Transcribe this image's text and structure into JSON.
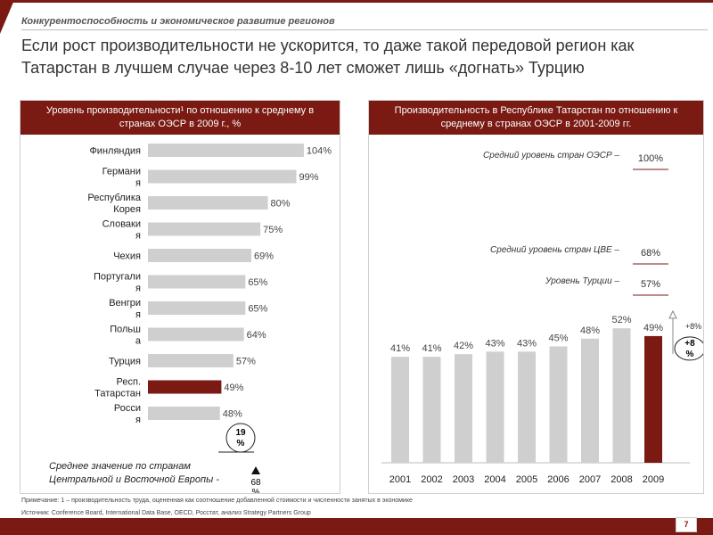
{
  "section_title": "Конкурентоспособность и экономическое развитие регионов",
  "headline": "Если рост производительности не ускорится, то даже такой передовой регион как Татарстан в лучшем случае через 8-10 лет сможет лишь «догнать» Турцию",
  "left_panel_header": "Уровень производительности¹ по отношению к среднему в странах ОЭСР в 2009 г., %",
  "right_panel_header": "Производительность в Республике Татарстан по отношению к среднему в странах ОЭСР в 2001-2009 гг.",
  "footnote": "Примечание: 1 – производительность труда, оцененная как соотношение добавленной стоимости и численности занятых в экономике",
  "sources": "Источник: Conference Board, International Data Base, OECD, Росстат, анализ Strategy Partners Group",
  "page_number": "7",
  "colors": {
    "brand": "#7a1a12",
    "bar_gray": "#cfcfcf",
    "highlight": "#7a1a12"
  },
  "chart_data": [
    {
      "type": "bar",
      "orientation": "horizontal",
      "categories": [
        [
          "Финляндия"
        ],
        [
          "Германи",
          "я"
        ],
        [
          "Республика",
          "Корея"
        ],
        [
          "Словаки",
          "я"
        ],
        [
          "Чехия"
        ],
        [
          "Португали",
          "я"
        ],
        [
          "Венгри",
          "я"
        ],
        [
          "Польш",
          "а"
        ],
        [
          "Турция"
        ],
        [
          "Респ.",
          "Татарстан"
        ],
        [
          "Росси",
          "я"
        ]
      ],
      "values": [
        104,
        99,
        80,
        75,
        69,
        65,
        65,
        64,
        57,
        49,
        48
      ],
      "value_labels": [
        "104%",
        "99%",
        "80%",
        "75%",
        "69%",
        "65%",
        "65%",
        "64%",
        "57%",
        "49%",
        "48%"
      ],
      "highlight_index": 9,
      "xlim": [
        0,
        110
      ],
      "gap_annotation": "19 %",
      "reference_label": "Среднее значение по странам Центральной и Восточной Европы -",
      "reference_value": "68 %"
    },
    {
      "type": "bar",
      "categories": [
        "2001",
        "2002",
        "2003",
        "2004",
        "2005",
        "2006",
        "2007",
        "2008",
        "2009"
      ],
      "values": [
        41,
        41,
        42,
        43,
        43,
        45,
        48,
        52,
        49
      ],
      "value_labels": [
        "41%",
        "41%",
        "42%",
        "43%",
        "43%",
        "45%",
        "48%",
        "52%",
        "49%"
      ],
      "highlight_index": 8,
      "ylim": [
        0,
        100
      ],
      "reference_lines": [
        {
          "label": "Средний уровень стран ОЭСР –",
          "value": 100,
          "value_label": "100%"
        },
        {
          "label": "Средний уровень стран ЦВЕ –",
          "value": 68,
          "value_label": "68%"
        },
        {
          "label": "Уровень Турции –",
          "value": 57,
          "value_label": "57%"
        }
      ],
      "gap_label_small": "+8%",
      "gap_label_circle": "+8 %"
    }
  ]
}
